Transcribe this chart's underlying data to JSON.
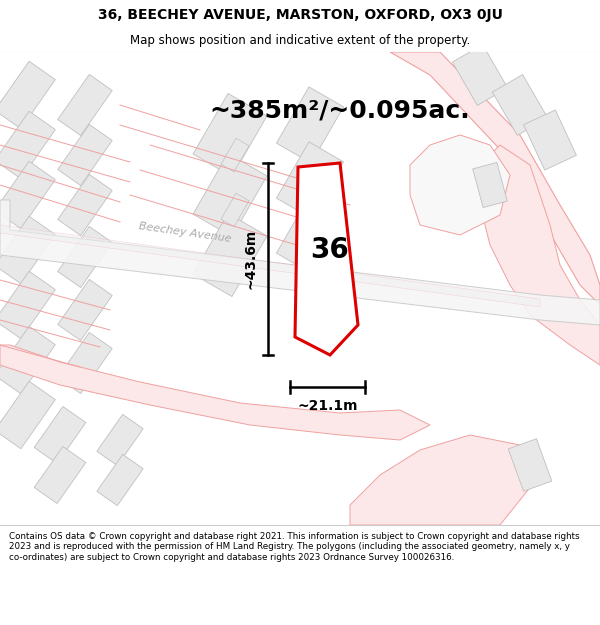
{
  "title_line1": "36, BEECHEY AVENUE, MARSTON, OXFORD, OX3 0JU",
  "title_line2": "Map shows position and indicative extent of the property.",
  "area_text": "~385m²/~0.095ac.",
  "number_label": "36",
  "dim_vertical": "~43.6m",
  "dim_horizontal": "~21.1m",
  "street_label": "Beechey Avenue",
  "footer_text": "Contains OS data © Crown copyright and database right 2021. This information is subject to Crown copyright and database rights 2023 and is reproduced with the permission of HM Land Registry. The polygons (including the associated geometry, namely x, y co-ordinates) are subject to Crown copyright and database rights 2023 Ordnance Survey 100026316.",
  "bg_color": "#ffffff",
  "map_bg": "#ffffff",
  "plot_outline_color": "#dd0000",
  "plot_fill_color": "#ffffff",
  "building_fill": "#e8e8e8",
  "building_edge": "#c0c0c0",
  "road_fill": "#fce8e8",
  "road_edge": "#f0a0a0",
  "line_color": "#f0a0a0",
  "dim_line_color": "#000000",
  "street_text_color": "#aaaaaa",
  "header_sep_color": "#cccccc",
  "footer_sep_color": "#cccccc"
}
